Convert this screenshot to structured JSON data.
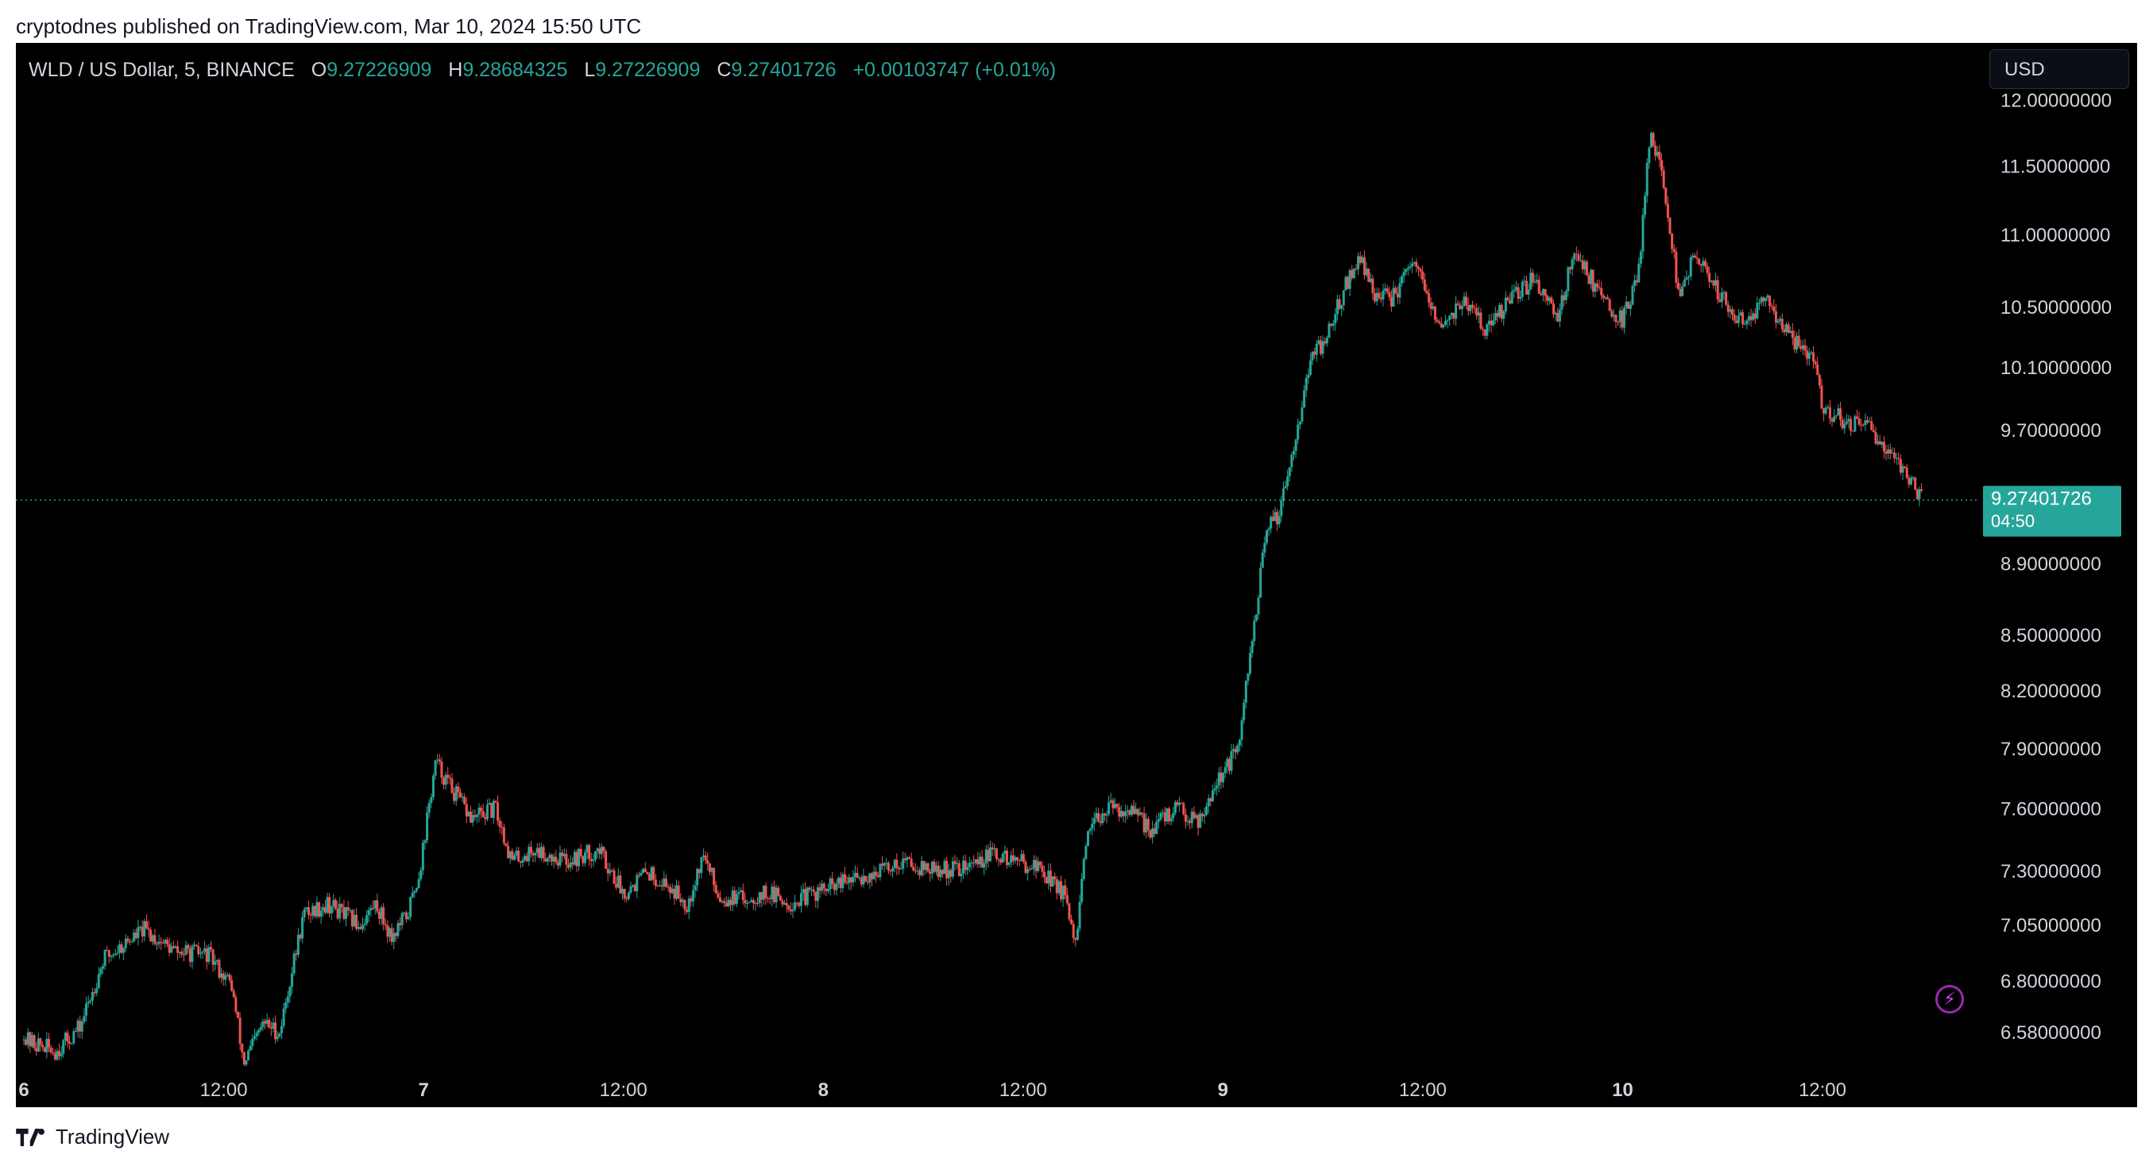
{
  "header": {
    "publish_line": "cryptodnes published on TradingView.com, Mar 10, 2024 15:50 UTC"
  },
  "legend": {
    "symbol": "WLD / US Dollar, 5, BINANCE",
    "o_label": "O",
    "o_value": "9.27226909",
    "h_label": "H",
    "h_value": "9.28684325",
    "l_label": "L",
    "l_value": "9.27226909",
    "c_label": "C",
    "c_value": "9.27401726",
    "change": "+0.00103747 (+0.01%)"
  },
  "currency": {
    "label": "USD"
  },
  "price_tag": {
    "price": "9.27401726",
    "countdown": "04:50"
  },
  "footer": {
    "brand": "TradingView"
  },
  "colors": {
    "up": "#26a69a",
    "down": "#ef5350",
    "background": "#000000",
    "axis_text": "#d1d4dc",
    "accent_purple": "#9c27b0"
  },
  "icons": {
    "bolt": "lightning-bolt-icon",
    "logo": "tradingview-logo-icon"
  },
  "chart_data": {
    "type": "line",
    "style": "candlestick",
    "symbol": "WLD / US Dollar",
    "interval": "5",
    "exchange": "BINANCE",
    "x_ticks": [
      {
        "label": "6",
        "x": 0
      },
      {
        "label": "12:00",
        "x": 0.5
      },
      {
        "label": "7",
        "x": 1
      },
      {
        "label": "12:00",
        "x": 1.5
      },
      {
        "label": "8",
        "x": 2
      },
      {
        "label": "12:00",
        "x": 2.5
      },
      {
        "label": "9",
        "x": 3
      },
      {
        "label": "12:00",
        "x": 3.5
      },
      {
        "label": "10",
        "x": 4
      },
      {
        "label": "12:00",
        "x": 4.5
      }
    ],
    "x_unit": "days since Mar 6, 2024 00:00 UTC",
    "xlim": [
      -0.02,
      4.83
    ],
    "y_ticks": [
      "12.00000000",
      "11.50000000",
      "11.00000000",
      "10.50000000",
      "10.10000000",
      "9.70000000",
      "8.90000000",
      "8.50000000",
      "8.20000000",
      "7.90000000",
      "7.60000000",
      "7.30000000",
      "7.05000000",
      "6.80000000",
      "6.58000000"
    ],
    "ylim": [
      6.4,
      12.2
    ],
    "y_scale": "log",
    "current_price": 9.27401726,
    "price_path": [
      [
        0.0,
        6.55
      ],
      [
        0.08,
        6.5
      ],
      [
        0.14,
        6.6
      ],
      [
        0.2,
        6.9
      ],
      [
        0.3,
        7.03
      ],
      [
        0.38,
        6.93
      ],
      [
        0.46,
        6.92
      ],
      [
        0.52,
        6.78
      ],
      [
        0.55,
        6.45
      ],
      [
        0.6,
        6.62
      ],
      [
        0.64,
        6.58
      ],
      [
        0.7,
        7.1
      ],
      [
        0.76,
        7.15
      ],
      [
        0.84,
        7.05
      ],
      [
        0.88,
        7.15
      ],
      [
        0.92,
        7.0
      ],
      [
        0.96,
        7.1
      ],
      [
        0.99,
        7.3
      ],
      [
        1.03,
        7.83
      ],
      [
        1.07,
        7.7
      ],
      [
        1.12,
        7.55
      ],
      [
        1.18,
        7.6
      ],
      [
        1.22,
        7.35
      ],
      [
        1.28,
        7.4
      ],
      [
        1.36,
        7.35
      ],
      [
        1.44,
        7.4
      ],
      [
        1.5,
        7.2
      ],
      [
        1.56,
        7.3
      ],
      [
        1.62,
        7.22
      ],
      [
        1.66,
        7.15
      ],
      [
        1.7,
        7.38
      ],
      [
        1.74,
        7.18
      ],
      [
        1.8,
        7.17
      ],
      [
        1.86,
        7.2
      ],
      [
        1.92,
        7.15
      ],
      [
        1.98,
        7.2
      ],
      [
        2.06,
        7.25
      ],
      [
        2.14,
        7.3
      ],
      [
        2.2,
        7.35
      ],
      [
        2.28,
        7.3
      ],
      [
        2.36,
        7.32
      ],
      [
        2.42,
        7.38
      ],
      [
        2.48,
        7.35
      ],
      [
        2.54,
        7.32
      ],
      [
        2.6,
        7.2
      ],
      [
        2.63,
        6.95
      ],
      [
        2.66,
        7.45
      ],
      [
        2.7,
        7.6
      ],
      [
        2.76,
        7.6
      ],
      [
        2.82,
        7.5
      ],
      [
        2.88,
        7.6
      ],
      [
        2.94,
        7.55
      ],
      [
        2.98,
        7.72
      ],
      [
        3.04,
        7.9
      ],
      [
        3.08,
        8.6
      ],
      [
        3.11,
        9.1
      ],
      [
        3.14,
        9.2
      ],
      [
        3.18,
        9.65
      ],
      [
        3.22,
        10.15
      ],
      [
        3.26,
        10.3
      ],
      [
        3.3,
        10.6
      ],
      [
        3.34,
        10.85
      ],
      [
        3.38,
        10.6
      ],
      [
        3.42,
        10.55
      ],
      [
        3.48,
        10.8
      ],
      [
        3.54,
        10.35
      ],
      [
        3.6,
        10.55
      ],
      [
        3.66,
        10.35
      ],
      [
        3.72,
        10.55
      ],
      [
        3.78,
        10.7
      ],
      [
        3.84,
        10.45
      ],
      [
        3.88,
        10.9
      ],
      [
        3.94,
        10.6
      ],
      [
        4.0,
        10.4
      ],
      [
        4.04,
        10.75
      ],
      [
        4.07,
        11.8
      ],
      [
        4.1,
        11.4
      ],
      [
        4.14,
        10.6
      ],
      [
        4.18,
        10.85
      ],
      [
        4.24,
        10.6
      ],
      [
        4.3,
        10.4
      ],
      [
        4.36,
        10.55
      ],
      [
        4.42,
        10.3
      ],
      [
        4.48,
        10.15
      ],
      [
        4.5,
        9.85
      ],
      [
        4.56,
        9.75
      ],
      [
        4.62,
        9.7
      ],
      [
        4.68,
        9.55
      ],
      [
        4.72,
        9.4
      ],
      [
        4.75,
        9.27
      ]
    ]
  }
}
